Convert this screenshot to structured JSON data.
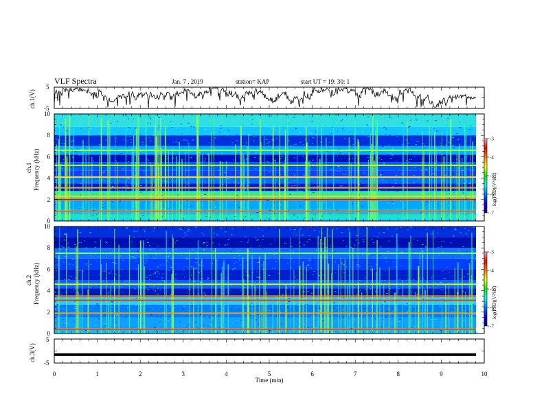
{
  "header": {
    "title": "VLF Spectra",
    "date": "Jan. 7 , 2019",
    "station": "station= KAP",
    "start": "start UT =  19: 30: 1"
  },
  "chart_data": [
    {
      "type": "line",
      "name": "ch1-waveform",
      "ylabel": "ch.1(V)",
      "ylim": [
        -5,
        5
      ],
      "yticks": [
        "5",
        "-5"
      ],
      "xlim": [
        0,
        10
      ]
    },
    {
      "type": "heatmap",
      "name": "ch1-spectrogram",
      "ylabel_line1": "ch.1",
      "ylabel_line2": "Frequency (kHz)",
      "xlim": [
        0,
        10
      ],
      "ylim": [
        0,
        10
      ],
      "yticks": [
        0,
        2,
        4,
        6,
        8,
        10
      ],
      "colorbar": {
        "label": "log(PSD)(V²/Hz)",
        "range": [
          -7,
          -3
        ],
        "ticks": [
          -3,
          -4,
          -5,
          -6,
          -7
        ]
      },
      "bands": [
        {
          "f": 0.9,
          "color": "#ff6a00"
        },
        {
          "f": 2.0,
          "color": "#ff0000"
        },
        {
          "f": 2.3,
          "color": "#ffd000"
        },
        {
          "f": 3.1,
          "color": "#ffb000"
        },
        {
          "f": 4.1,
          "color": "#ffe000"
        },
        {
          "f": 5.2,
          "color": "#c8ff00"
        },
        {
          "f": 6.6,
          "color": "#a0ff40"
        }
      ]
    },
    {
      "type": "heatmap",
      "name": "ch2-spectrogram",
      "ylabel_line1": "ch.2",
      "ylabel_line2": "Frequency (kHz)",
      "xlim": [
        0,
        10
      ],
      "ylim": [
        0,
        10
      ],
      "yticks": [
        0,
        2,
        4,
        6,
        8,
        10
      ],
      "colorbar": {
        "label": "log(PSD)(V²/Hz)",
        "range": [
          -7,
          -3
        ],
        "ticks": [
          -3,
          -4,
          -5,
          -6,
          -7
        ]
      },
      "bands": [
        {
          "f": 0.4,
          "color": "#ff4000"
        },
        {
          "f": 1.9,
          "color": "#ffa000"
        },
        {
          "f": 3.1,
          "color": "#ff3000"
        },
        {
          "f": 3.5,
          "color": "#ff9000"
        },
        {
          "f": 4.6,
          "color": "#d0ff00"
        },
        {
          "f": 7.5,
          "color": "#80ff60"
        }
      ]
    },
    {
      "type": "line",
      "name": "ch3-signal",
      "ylabel": "ch.3(V)",
      "ylim": [
        -5,
        5
      ],
      "yticks": [
        "5",
        "-5"
      ],
      "level": -1.5,
      "xlim": [
        0,
        10
      ],
      "xticks": [
        0,
        1,
        2,
        3,
        4,
        5,
        6,
        7,
        8,
        9,
        10
      ],
      "xlabel": "Time (min)"
    }
  ]
}
